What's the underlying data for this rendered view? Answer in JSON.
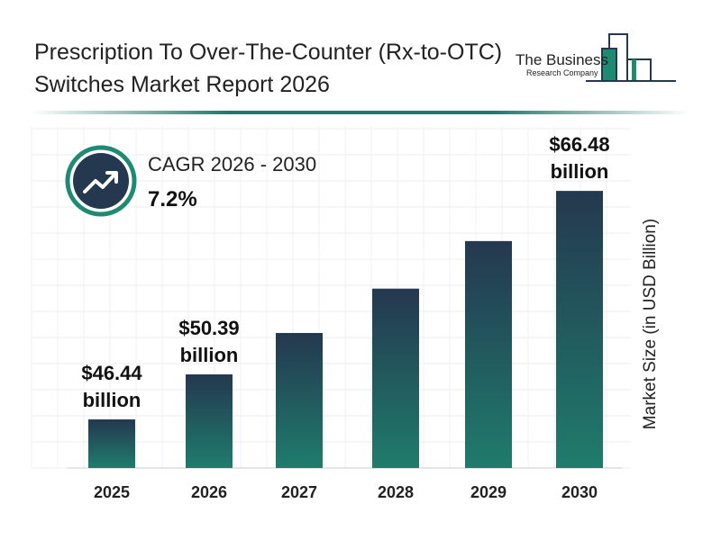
{
  "title": "Prescription To Over-The-Counter (Rx-to-OTC) Switches Market Report 2026",
  "logo": {
    "line1": "The Business",
    "line2": "Research Company"
  },
  "cagr": {
    "label": "CAGR 2026 - 2030",
    "value": "7.2%",
    "icon": "trend-up-icon"
  },
  "colors": {
    "bar_top": "#24384f",
    "bar_bottom": "#1f7c6c",
    "accent": "#1e8a72"
  },
  "chart_data": {
    "type": "bar",
    "categories": [
      "2025",
      "2026",
      "2027",
      "2028",
      "2029",
      "2030"
    ],
    "values": [
      46.44,
      50.39,
      54.02,
      57.91,
      62.08,
      66.48
    ],
    "data_labels": [
      "$46.44 billion",
      "$50.39 billion",
      "",
      "",
      "",
      "$66.48 billion"
    ],
    "ylabel": "Market Size (in USD Billion)",
    "grid": true
  }
}
